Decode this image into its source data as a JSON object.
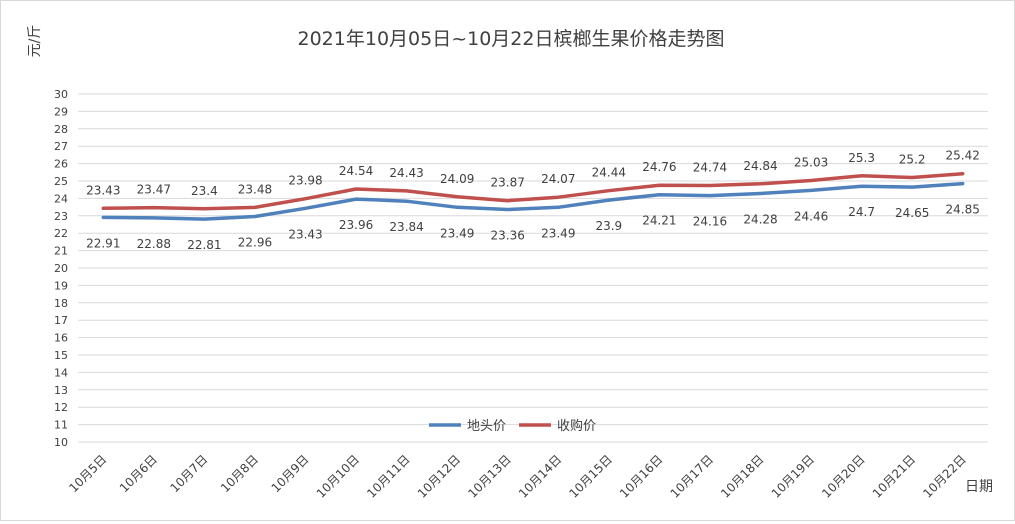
{
  "chart_data": {
    "type": "line",
    "title": "2021年10月05日~10月22日槟榔生果价格走势图",
    "ylabel": "元/斤",
    "xlabel": "日期",
    "ylim": [
      10,
      30
    ],
    "ytick_step": 1,
    "grid": true,
    "legend_position": "bottom-center",
    "categories": [
      "10月5日",
      "10月6日",
      "10月7日",
      "10月8日",
      "10月9日",
      "10月10日",
      "10月11日",
      "10月12日",
      "10月13日",
      "10月14日",
      "10月15日",
      "10月16日",
      "10月17日",
      "10月18日",
      "10月19日",
      "10月20日",
      "10月21日",
      "10月22日"
    ],
    "series": [
      {
        "name": "地头价",
        "color": "#4f81bd",
        "values": [
          22.91,
          22.88,
          22.81,
          22.96,
          23.43,
          23.96,
          23.84,
          23.49,
          23.36,
          23.49,
          23.9,
          24.21,
          24.16,
          24.28,
          24.46,
          24.7,
          24.65,
          24.85
        ],
        "label_position": "below"
      },
      {
        "name": "收购价",
        "color": "#c0504d",
        "values": [
          23.43,
          23.47,
          23.4,
          23.48,
          23.98,
          24.54,
          24.43,
          24.09,
          23.87,
          24.07,
          24.44,
          24.76,
          24.74,
          24.84,
          25.03,
          25.3,
          25.2,
          25.42
        ],
        "label_position": "above"
      }
    ]
  }
}
